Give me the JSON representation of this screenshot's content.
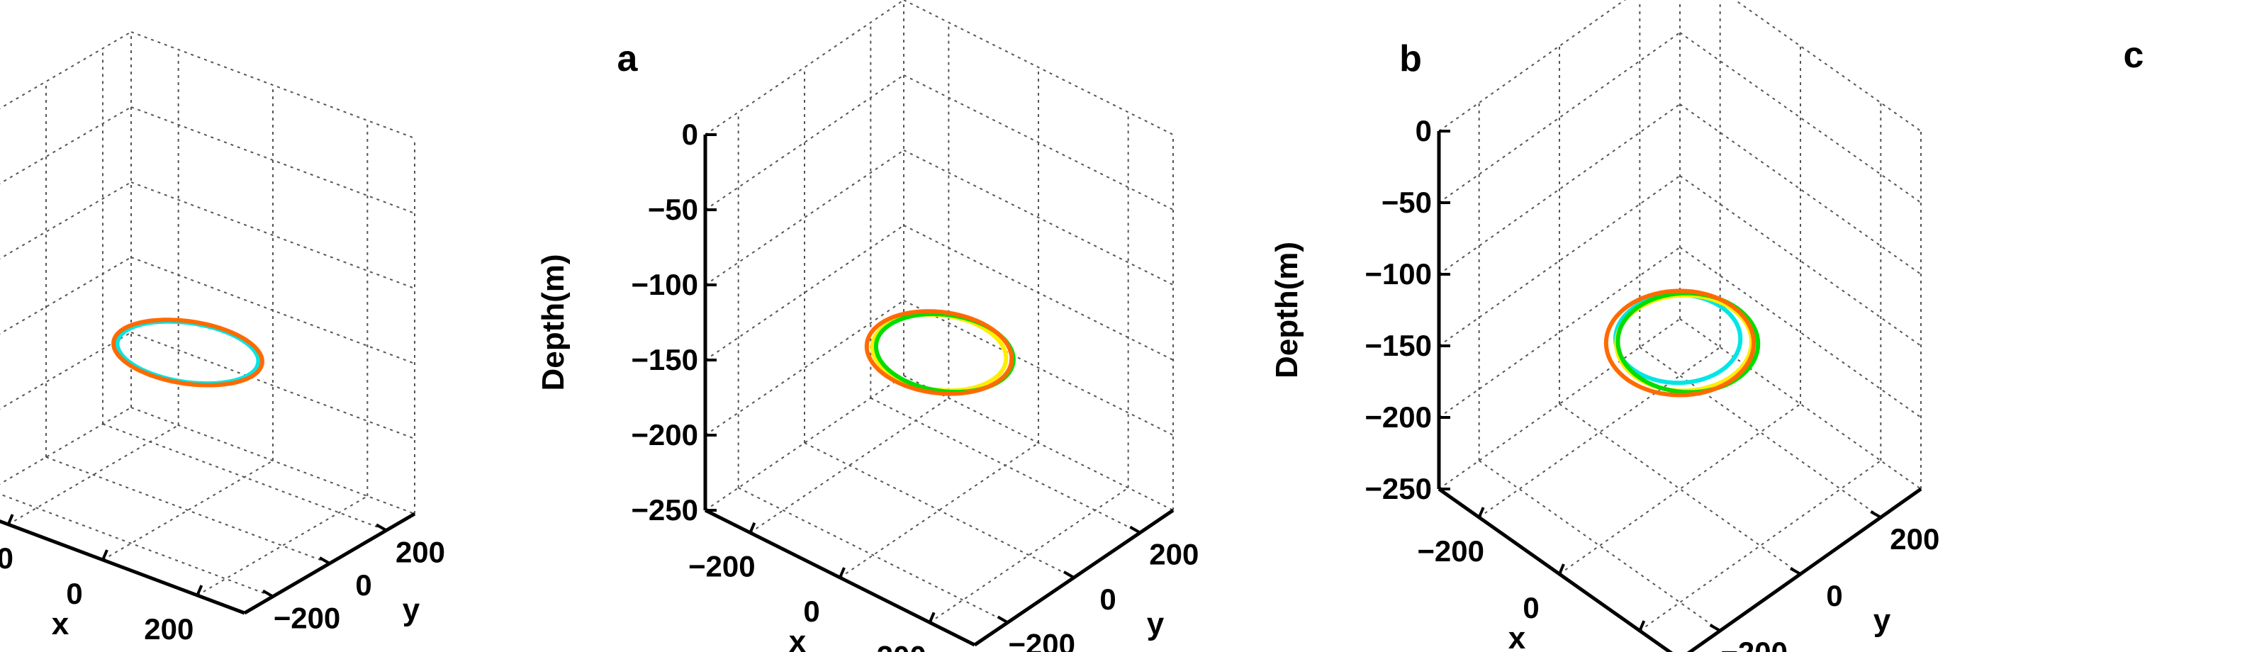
{
  "chart_data": [
    {
      "type": "line",
      "panel_label": "a",
      "zlabel": "Depth(m)",
      "xlabel": "x",
      "ylabel": "y",
      "zlim": [
        -250,
        0
      ],
      "xlim": [
        -300,
        300
      ],
      "ylim": [
        -300,
        300
      ],
      "z_ticks": [
        "0",
        "−50",
        "−100",
        "−150",
        "−200",
        "−250"
      ],
      "x_ticks": [
        "−200",
        "0",
        "200"
      ],
      "y_ticks": [
        "−200",
        "0",
        "200"
      ],
      "grid": true,
      "series": [
        {
          "color": "#00e5e5",
          "center": [
            0,
            0,
            -145
          ],
          "radii": [
            128,
            128
          ]
        },
        {
          "color": "#ff6a00",
          "center": [
            0,
            0,
            -145
          ],
          "radii": [
            135,
            135
          ]
        }
      ]
    },
    {
      "type": "line",
      "panel_label": "b",
      "zlabel": "Depth(m)",
      "xlabel": "x",
      "ylabel": "y",
      "zlim": [
        -250,
        0
      ],
      "xlim": [
        -300,
        300
      ],
      "ylim": [
        -300,
        300
      ],
      "z_ticks": [
        "0",
        "−50",
        "−100",
        "−150",
        "−200",
        "−250"
      ],
      "x_ticks": [
        "−200",
        "0",
        "200"
      ],
      "y_ticks": [
        "−200",
        "0",
        "200"
      ],
      "grid": true,
      "series": [
        {
          "color": "#ffee00",
          "center": [
            0,
            0,
            -145
          ],
          "radii": [
            120,
            120
          ]
        },
        {
          "color": "#00dd00",
          "center": [
            8,
            6,
            -145
          ],
          "radii": [
            124,
            122
          ]
        },
        {
          "color": "#ff6a00",
          "center": [
            0,
            0,
            -145
          ],
          "radii": [
            130,
            130
          ]
        }
      ]
    },
    {
      "type": "line",
      "panel_label": "c",
      "zlabel": "Depth(m)",
      "xlabel": "x",
      "ylabel": "y",
      "zlim": [
        -250,
        0
      ],
      "xlim": [
        -300,
        300
      ],
      "ylim": [
        -300,
        300
      ],
      "z_ticks": [
        "0",
        "−50",
        "−100",
        "−150",
        "−200",
        "−250"
      ],
      "x_ticks": [
        "−200",
        "0",
        "200"
      ],
      "y_ticks": [
        "−200",
        "0",
        "200"
      ],
      "grid": true,
      "series": [
        {
          "color": "#00e5e5",
          "center": [
            -15,
            10,
            -150
          ],
          "radii": [
            110,
            110
          ]
        },
        {
          "color": "#ffee00",
          "center": [
            5,
            5,
            -148
          ],
          "radii": [
            118,
            120
          ]
        },
        {
          "color": "#00dd00",
          "center": [
            12,
            8,
            -147
          ],
          "radii": [
            125,
            122
          ]
        },
        {
          "color": "#ff6a00",
          "center": [
            0,
            0,
            -148
          ],
          "radii": [
            130,
            130
          ]
        }
      ]
    }
  ]
}
